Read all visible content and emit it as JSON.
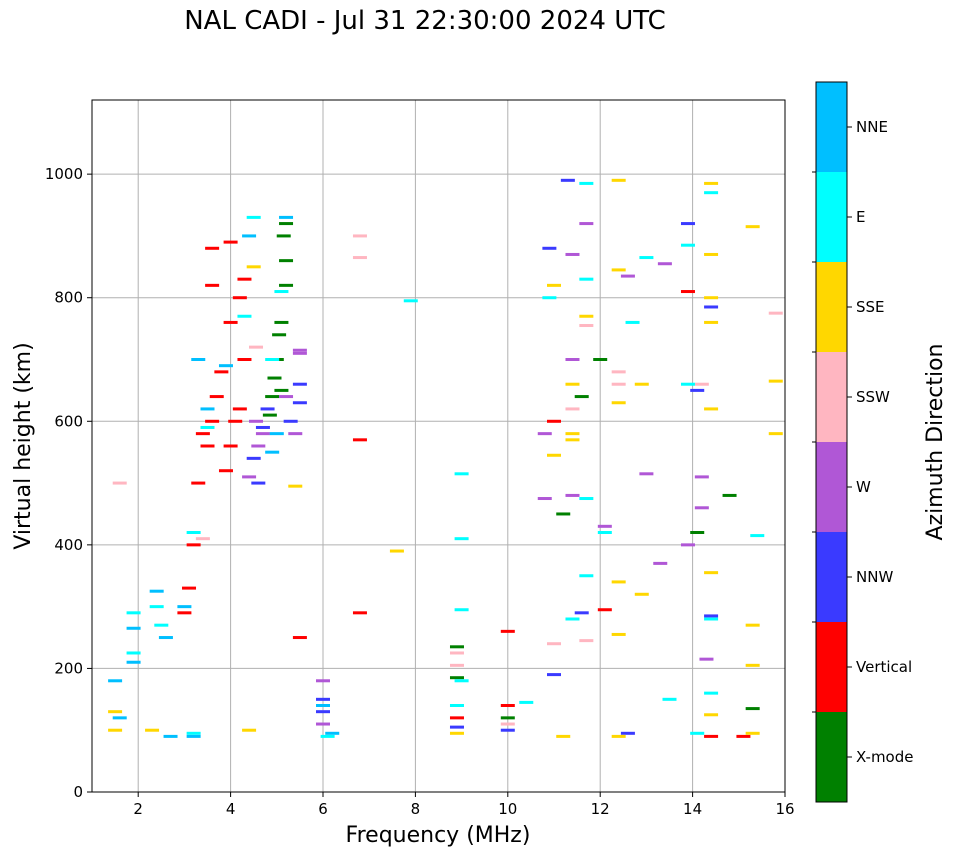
{
  "chart_data": {
    "type": "scatter",
    "title": "NAL CADI - Jul 31 22:30:00 2024 UTC",
    "xlabel": "Frequency (MHz)",
    "ylabel": "Virtual height (km)",
    "xlim": [
      1,
      16
    ],
    "ylim": [
      0,
      1120
    ],
    "xticks": [
      2,
      4,
      6,
      8,
      10,
      12,
      14,
      16
    ],
    "yticks": [
      0,
      200,
      400,
      600,
      800,
      1000
    ],
    "grid": true,
    "colorbar": {
      "label": "Azimuth Direction",
      "categories": [
        {
          "name": "X-mode",
          "color": "#008000"
        },
        {
          "name": "Vertical",
          "color": "#ff0000"
        },
        {
          "name": "NNW",
          "color": "#3a3aff"
        },
        {
          "name": "W",
          "color": "#b057d6"
        },
        {
          "name": "SSW",
          "color": "#ffb6c1"
        },
        {
          "name": "SSE",
          "color": "#ffd700"
        },
        {
          "name": "E",
          "color": "#00ffff"
        },
        {
          "name": "NNE",
          "color": "#00bfff"
        }
      ]
    },
    "series": [
      {
        "name": "X-mode",
        "points": [
          [
            4.9,
            640
          ],
          [
            5.0,
            700
          ],
          [
            5.1,
            760
          ],
          [
            5.2,
            820
          ],
          [
            5.15,
            900
          ],
          [
            5.2,
            920
          ],
          [
            4.85,
            610
          ],
          [
            5.05,
            740
          ],
          [
            5.1,
            650
          ],
          [
            8.9,
            235
          ],
          [
            8.9,
            185
          ],
          [
            10.0,
            120
          ],
          [
            12.0,
            700
          ],
          [
            11.6,
            640
          ],
          [
            14.8,
            480
          ],
          [
            15.3,
            135
          ],
          [
            14.1,
            420
          ],
          [
            11.2,
            450
          ],
          [
            4.95,
            670
          ],
          [
            5.2,
            860
          ]
        ]
      },
      {
        "name": "Vertical",
        "points": [
          [
            3.0,
            290
          ],
          [
            3.1,
            330
          ],
          [
            3.2,
            400
          ],
          [
            3.3,
            500
          ],
          [
            3.5,
            560
          ],
          [
            3.6,
            600
          ],
          [
            3.7,
            640
          ],
          [
            3.8,
            680
          ],
          [
            3.9,
            520
          ],
          [
            4.0,
            560
          ],
          [
            4.1,
            600
          ],
          [
            4.2,
            620
          ],
          [
            4.3,
            700
          ],
          [
            4.0,
            760
          ],
          [
            4.2,
            800
          ],
          [
            3.6,
            820
          ],
          [
            3.6,
            880
          ],
          [
            4.0,
            890
          ],
          [
            4.3,
            830
          ],
          [
            3.4,
            580
          ],
          [
            6.8,
            290
          ],
          [
            6.8,
            570
          ],
          [
            11.0,
            600
          ],
          [
            12.1,
            295
          ],
          [
            13.9,
            810
          ],
          [
            14.4,
            90
          ],
          [
            15.1,
            90
          ],
          [
            10.0,
            140
          ],
          [
            10.0,
            260
          ],
          [
            8.9,
            120
          ],
          [
            5.5,
            250
          ]
        ]
      },
      {
        "name": "NNW",
        "points": [
          [
            4.5,
            540
          ],
          [
            4.7,
            590
          ],
          [
            4.8,
            620
          ],
          [
            5.3,
            600
          ],
          [
            5.5,
            660
          ],
          [
            4.6,
            500
          ],
          [
            6.0,
            150
          ],
          [
            6.0,
            130
          ],
          [
            10.9,
            880
          ],
          [
            11.3,
            990
          ],
          [
            13.9,
            920
          ],
          [
            14.4,
            785
          ],
          [
            14.1,
            650
          ],
          [
            12.6,
            95
          ],
          [
            14.4,
            285
          ],
          [
            11.6,
            290
          ],
          [
            8.9,
            105
          ],
          [
            10.0,
            100
          ],
          [
            5.5,
            630
          ],
          [
            11.0,
            190
          ]
        ]
      },
      {
        "name": "W",
        "points": [
          [
            4.4,
            510
          ],
          [
            4.6,
            560
          ],
          [
            4.7,
            580
          ],
          [
            5.2,
            640
          ],
          [
            5.5,
            710
          ],
          [
            5.4,
            580
          ],
          [
            6.0,
            180
          ],
          [
            6.0,
            110
          ],
          [
            11.4,
            870
          ],
          [
            11.7,
            920
          ],
          [
            12.6,
            835
          ],
          [
            13.4,
            855
          ],
          [
            13.0,
            515
          ],
          [
            14.2,
            510
          ],
          [
            14.2,
            460
          ],
          [
            13.9,
            400
          ],
          [
            11.4,
            700
          ],
          [
            10.8,
            580
          ],
          [
            10.8,
            475
          ],
          [
            13.3,
            370
          ],
          [
            14.3,
            215
          ],
          [
            12.1,
            430
          ],
          [
            11.4,
            480
          ],
          [
            5.5,
            715
          ],
          [
            4.55,
            600
          ]
        ]
      },
      {
        "name": "SSW",
        "points": [
          [
            1.6,
            500
          ],
          [
            6.8,
            900
          ],
          [
            6.8,
            865
          ],
          [
            8.9,
            225
          ],
          [
            8.9,
            205
          ],
          [
            11.4,
            620
          ],
          [
            11.7,
            755
          ],
          [
            12.4,
            680
          ],
          [
            12.4,
            660
          ],
          [
            14.2,
            660
          ],
          [
            15.8,
            775
          ],
          [
            11.0,
            240
          ],
          [
            11.7,
            245
          ],
          [
            10.0,
            110
          ],
          [
            4.55,
            720
          ],
          [
            3.4,
            410
          ]
        ]
      },
      {
        "name": "SSE",
        "points": [
          [
            1.5,
            130
          ],
          [
            1.5,
            100
          ],
          [
            2.3,
            100
          ],
          [
            4.4,
            100
          ],
          [
            4.5,
            850
          ],
          [
            7.6,
            390
          ],
          [
            11.0,
            820
          ],
          [
            11.0,
            545
          ],
          [
            11.4,
            660
          ],
          [
            11.4,
            580
          ],
          [
            11.4,
            570
          ],
          [
            11.7,
            770
          ],
          [
            12.4,
            990
          ],
          [
            12.4,
            845
          ],
          [
            12.4,
            630
          ],
          [
            12.4,
            340
          ],
          [
            12.4,
            255
          ],
          [
            12.4,
            90
          ],
          [
            12.9,
            660
          ],
          [
            12.9,
            320
          ],
          [
            14.4,
            985
          ],
          [
            14.4,
            870
          ],
          [
            14.4,
            800
          ],
          [
            14.4,
            760
          ],
          [
            14.4,
            620
          ],
          [
            14.4,
            355
          ],
          [
            14.4,
            125
          ],
          [
            15.3,
            915
          ],
          [
            15.3,
            270
          ],
          [
            15.3,
            205
          ],
          [
            15.3,
            95
          ],
          [
            15.8,
            665
          ],
          [
            15.8,
            580
          ],
          [
            11.2,
            90
          ],
          [
            5.4,
            495
          ],
          [
            8.9,
            95
          ]
        ]
      },
      {
        "name": "E",
        "points": [
          [
            1.9,
            290
          ],
          [
            1.9,
            225
          ],
          [
            2.4,
            300
          ],
          [
            2.5,
            270
          ],
          [
            3.2,
            420
          ],
          [
            3.5,
            590
          ],
          [
            4.3,
            770
          ],
          [
            4.5,
            930
          ],
          [
            4.9,
            700
          ],
          [
            5.1,
            810
          ],
          [
            7.9,
            795
          ],
          [
            9.0,
            515
          ],
          [
            9.0,
            410
          ],
          [
            9.0,
            295
          ],
          [
            9.0,
            180
          ],
          [
            8.9,
            140
          ],
          [
            10.4,
            145
          ],
          [
            11.4,
            280
          ],
          [
            11.7,
            985
          ],
          [
            11.7,
            830
          ],
          [
            11.7,
            475
          ],
          [
            11.7,
            350
          ],
          [
            12.1,
            420
          ],
          [
            12.7,
            760
          ],
          [
            13.0,
            865
          ],
          [
            13.5,
            150
          ],
          [
            13.9,
            885
          ],
          [
            13.9,
            660
          ],
          [
            14.4,
            970
          ],
          [
            14.4,
            280
          ],
          [
            14.4,
            160
          ],
          [
            14.1,
            95
          ],
          [
            15.4,
            415
          ],
          [
            10.9,
            800
          ],
          [
            6.1,
            90
          ],
          [
            3.2,
            95
          ]
        ]
      },
      {
        "name": "NNE",
        "points": [
          [
            1.5,
            180
          ],
          [
            1.9,
            265
          ],
          [
            1.9,
            210
          ],
          [
            2.4,
            325
          ],
          [
            2.6,
            250
          ],
          [
            3.0,
            300
          ],
          [
            3.3,
            700
          ],
          [
            3.5,
            620
          ],
          [
            3.9,
            690
          ],
          [
            4.4,
            900
          ],
          [
            4.9,
            550
          ],
          [
            5.0,
            580
          ],
          [
            5.2,
            930
          ],
          [
            6.2,
            95
          ],
          [
            6.0,
            140
          ],
          [
            2.7,
            90
          ],
          [
            3.2,
            90
          ],
          [
            1.6,
            120
          ]
        ]
      }
    ]
  }
}
